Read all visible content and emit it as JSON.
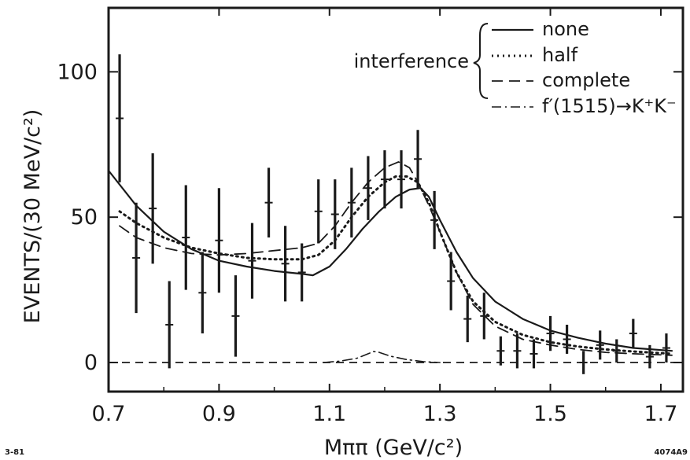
{
  "chart_data": {
    "type": "line",
    "title": "",
    "xlabel": "Mππ    (GeV/c²)",
    "ylabel": "EVENTS/(30 MeV/c²)",
    "xlim": [
      0.7,
      1.74
    ],
    "ylim": [
      -10,
      122
    ],
    "x_ticks": [
      0.7,
      0.9,
      1.1,
      1.3,
      1.5,
      1.7
    ],
    "y_ticks": [
      0,
      50,
      100
    ],
    "grid": false,
    "legend_placement": "top-right",
    "legend_group_label": "interference",
    "corner_left": "3-81",
    "corner_right": "4074A9",
    "series": [
      {
        "name": "none",
        "style": "solid",
        "x": [
          0.7,
          0.75,
          0.8,
          0.85,
          0.9,
          0.95,
          1.0,
          1.05,
          1.07,
          1.1,
          1.13,
          1.16,
          1.19,
          1.22,
          1.245,
          1.265,
          1.28,
          1.3,
          1.33,
          1.36,
          1.4,
          1.45,
          1.5,
          1.55,
          1.6,
          1.65,
          1.72
        ],
        "y": [
          66,
          54,
          45,
          39,
          35,
          33,
          31.5,
          30.5,
          30,
          33,
          39,
          46,
          52,
          57,
          59.5,
          60,
          57,
          49,
          38,
          29,
          21,
          15,
          11,
          8.5,
          6.5,
          5,
          4
        ]
      },
      {
        "name": "half",
        "style": "dotted",
        "x": [
          0.72,
          0.75,
          0.8,
          0.85,
          0.9,
          0.95,
          1.0,
          1.05,
          1.08,
          1.11,
          1.14,
          1.17,
          1.2,
          1.22,
          1.24,
          1.26,
          1.28,
          1.3,
          1.33,
          1.36,
          1.4,
          1.45,
          1.5,
          1.55,
          1.6,
          1.65,
          1.72
        ],
        "y": [
          52,
          48,
          43,
          39.5,
          37.5,
          36,
          35.5,
          35.5,
          37,
          42,
          50,
          57,
          62,
          64,
          64,
          62,
          55,
          45,
          31,
          21,
          14,
          9.5,
          7,
          5.5,
          4.5,
          3.8,
          3
        ]
      },
      {
        "name": "complete",
        "style": "dashed",
        "x": [
          0.72,
          0.75,
          0.8,
          0.85,
          0.9,
          0.95,
          1.0,
          1.05,
          1.08,
          1.11,
          1.14,
          1.17,
          1.2,
          1.225,
          1.245,
          1.26,
          1.28,
          1.3,
          1.33,
          1.36,
          1.4,
          1.45,
          1.5,
          1.55,
          1.6,
          1.65,
          1.72
        ],
        "y": [
          47,
          43,
          39.5,
          37.5,
          37,
          37.5,
          38.5,
          39.5,
          41,
          47,
          55,
          62,
          67,
          69,
          67,
          62,
          54,
          45,
          31,
          20,
          12.5,
          8,
          6,
          4.5,
          3.5,
          3,
          2.5
        ]
      },
      {
        "name": "f′(1515)→K⁺K⁻",
        "style": "dashdot",
        "x": [
          1.09,
          1.12,
          1.15,
          1.17,
          1.18,
          1.19,
          1.21,
          1.24,
          1.27,
          1.3
        ],
        "y": [
          0,
          0.5,
          1.5,
          3,
          3.8,
          3.5,
          2.2,
          1,
          0.3,
          0
        ]
      }
    ],
    "data_points": [
      {
        "x": 0.72,
        "y": 84,
        "err": 22
      },
      {
        "x": 0.75,
        "y": 36,
        "err": 19
      },
      {
        "x": 0.78,
        "y": 53,
        "err": 19
      },
      {
        "x": 0.81,
        "y": 13,
        "err": 15
      },
      {
        "x": 0.84,
        "y": 43,
        "err": 18
      },
      {
        "x": 0.87,
        "y": 24,
        "err": 14
      },
      {
        "x": 0.9,
        "y": 42,
        "err": 18
      },
      {
        "x": 0.93,
        "y": 16,
        "err": 14
      },
      {
        "x": 0.96,
        "y": 35,
        "err": 13
      },
      {
        "x": 0.99,
        "y": 55,
        "err": 12
      },
      {
        "x": 1.02,
        "y": 34,
        "err": 13
      },
      {
        "x": 1.05,
        "y": 31,
        "err": 10
      },
      {
        "x": 1.08,
        "y": 52,
        "err": 11
      },
      {
        "x": 1.11,
        "y": 51,
        "err": 12
      },
      {
        "x": 1.14,
        "y": 55,
        "err": 12
      },
      {
        "x": 1.17,
        "y": 60,
        "err": 11
      },
      {
        "x": 1.2,
        "y": 63,
        "err": 10
      },
      {
        "x": 1.23,
        "y": 63,
        "err": 10
      },
      {
        "x": 1.26,
        "y": 70,
        "err": 10
      },
      {
        "x": 1.29,
        "y": 49,
        "err": 10
      },
      {
        "x": 1.32,
        "y": 28,
        "err": 10
      },
      {
        "x": 1.35,
        "y": 15,
        "err": 8
      },
      {
        "x": 1.38,
        "y": 16,
        "err": 8
      },
      {
        "x": 1.41,
        "y": 4,
        "err": 5
      },
      {
        "x": 1.44,
        "y": 4,
        "err": 6
      },
      {
        "x": 1.47,
        "y": 3,
        "err": 5
      },
      {
        "x": 1.5,
        "y": 10,
        "err": 6
      },
      {
        "x": 1.53,
        "y": 8,
        "err": 5
      },
      {
        "x": 1.56,
        "y": 0,
        "err": 4
      },
      {
        "x": 1.59,
        "y": 6,
        "err": 5
      },
      {
        "x": 1.62,
        "y": 4,
        "err": 4
      },
      {
        "x": 1.65,
        "y": 10,
        "err": 5
      },
      {
        "x": 1.68,
        "y": 2,
        "err": 4
      },
      {
        "x": 1.71,
        "y": 5,
        "err": 5
      }
    ],
    "baseline": {
      "y": 0,
      "style": "dashed"
    }
  }
}
